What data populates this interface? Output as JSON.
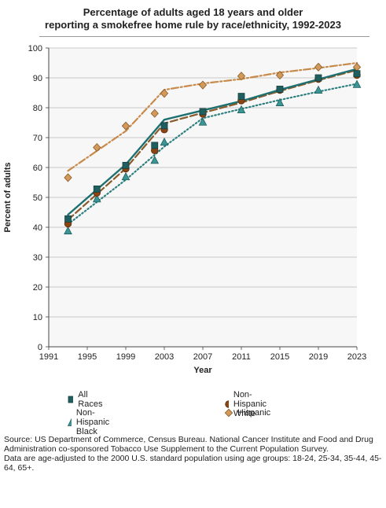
{
  "chart_data": {
    "type": "line",
    "title_line1": "Percentage of adults aged 18 years and older",
    "title_line2": "reporting a smokefree home rule by race/ethnicity, 1992-2023",
    "xlabel": "Year",
    "ylabel": "Percent of adults",
    "xlim": [
      1991,
      2023
    ],
    "ylim": [
      0,
      100
    ],
    "xticks": [
      1991,
      1995,
      1999,
      2003,
      2007,
      2011,
      2015,
      2019,
      2023
    ],
    "yticks": [
      0,
      10,
      20,
      30,
      40,
      50,
      60,
      70,
      80,
      90,
      100
    ],
    "grid": true,
    "legend_position": "bottom",
    "series": [
      {
        "name": "All Races",
        "color": "#1f5f5f",
        "line_color": "#1e7070",
        "marker": "square",
        "line_style": "solid",
        "marker_x": [
          1993,
          1996,
          1999,
          2002,
          2003,
          2007,
          2011,
          2015,
          2019,
          2023
        ],
        "marker_y": [
          42.8,
          52.8,
          60.7,
          67.4,
          74.0,
          78.7,
          83.8,
          86.2,
          90.0,
          91.4
        ],
        "line_x": [
          1993,
          1999,
          2003,
          2007,
          2011,
          2015,
          2019,
          2023
        ],
        "line_y": [
          44.2,
          61.0,
          76.0,
          79.1,
          82.2,
          86.0,
          89.5,
          93.0
        ]
      },
      {
        "name": "Non-Hispanic White",
        "color": "#8b4513",
        "line_color": "#8a5a2a",
        "marker": "circle",
        "line_style": "dashed",
        "marker_x": [
          1993,
          1996,
          1999,
          2002,
          2003,
          2007,
          2011,
          2015,
          2019,
          2023
        ],
        "marker_y": [
          41.2,
          51.5,
          59.6,
          65.7,
          72.7,
          77.9,
          82.4,
          85.9,
          89.6,
          90.9
        ],
        "line_x": [
          1993,
          1999,
          2003,
          2007,
          2011,
          2015,
          2019,
          2023
        ],
        "line_y": [
          42.5,
          59.7,
          74.8,
          78.3,
          81.7,
          85.6,
          89.2,
          92.6
        ]
      },
      {
        "name": "Non-Hispanic Black",
        "color": "#3a9595",
        "line_color": "#2e8080",
        "marker": "triangle",
        "line_style": "dotted",
        "marker_x": [
          1993,
          1996,
          1999,
          2002,
          2003,
          2007,
          2011,
          2015,
          2019,
          2023
        ],
        "marker_y": [
          38.8,
          49.5,
          56.9,
          62.4,
          68.5,
          75.2,
          79.3,
          81.7,
          85.9,
          87.8
        ],
        "line_x": [
          1993,
          1999,
          2003,
          2007,
          2011,
          2015,
          2019,
          2023
        ],
        "line_y": [
          41.0,
          55.9,
          67.0,
          76.5,
          79.6,
          82.6,
          85.4,
          88.0
        ]
      },
      {
        "name": "Hispanic",
        "color": "#d29a5a",
        "line_color": "#c88a4a",
        "marker": "diamond",
        "line_style": "dashdot",
        "marker_x": [
          1993,
          1996,
          1999,
          2002,
          2003,
          2007,
          2011,
          2015,
          2019,
          2023
        ],
        "marker_y": [
          56.6,
          66.7,
          73.9,
          78.1,
          84.8,
          87.6,
          90.6,
          90.9,
          93.6,
          93.6
        ],
        "line_x": [
          1993,
          1999,
          2003,
          2007,
          2011,
          2015,
          2019,
          2023
        ],
        "line_y": [
          58.9,
          72.2,
          86.0,
          88.1,
          89.6,
          91.8,
          93.3,
          95.0
        ]
      }
    ]
  },
  "source_line1": "Source: US Department of Commerce, Census Bureau. National Cancer Institute and Food and Drug Administration co-sponsored Tobacco Use Supplement to the Current Population Survey.",
  "source_line2": "Data are age-adjusted to the 2000 U.S. standard population using age groups: 18-24, 25-34, 35-44, 45-64, 65+."
}
